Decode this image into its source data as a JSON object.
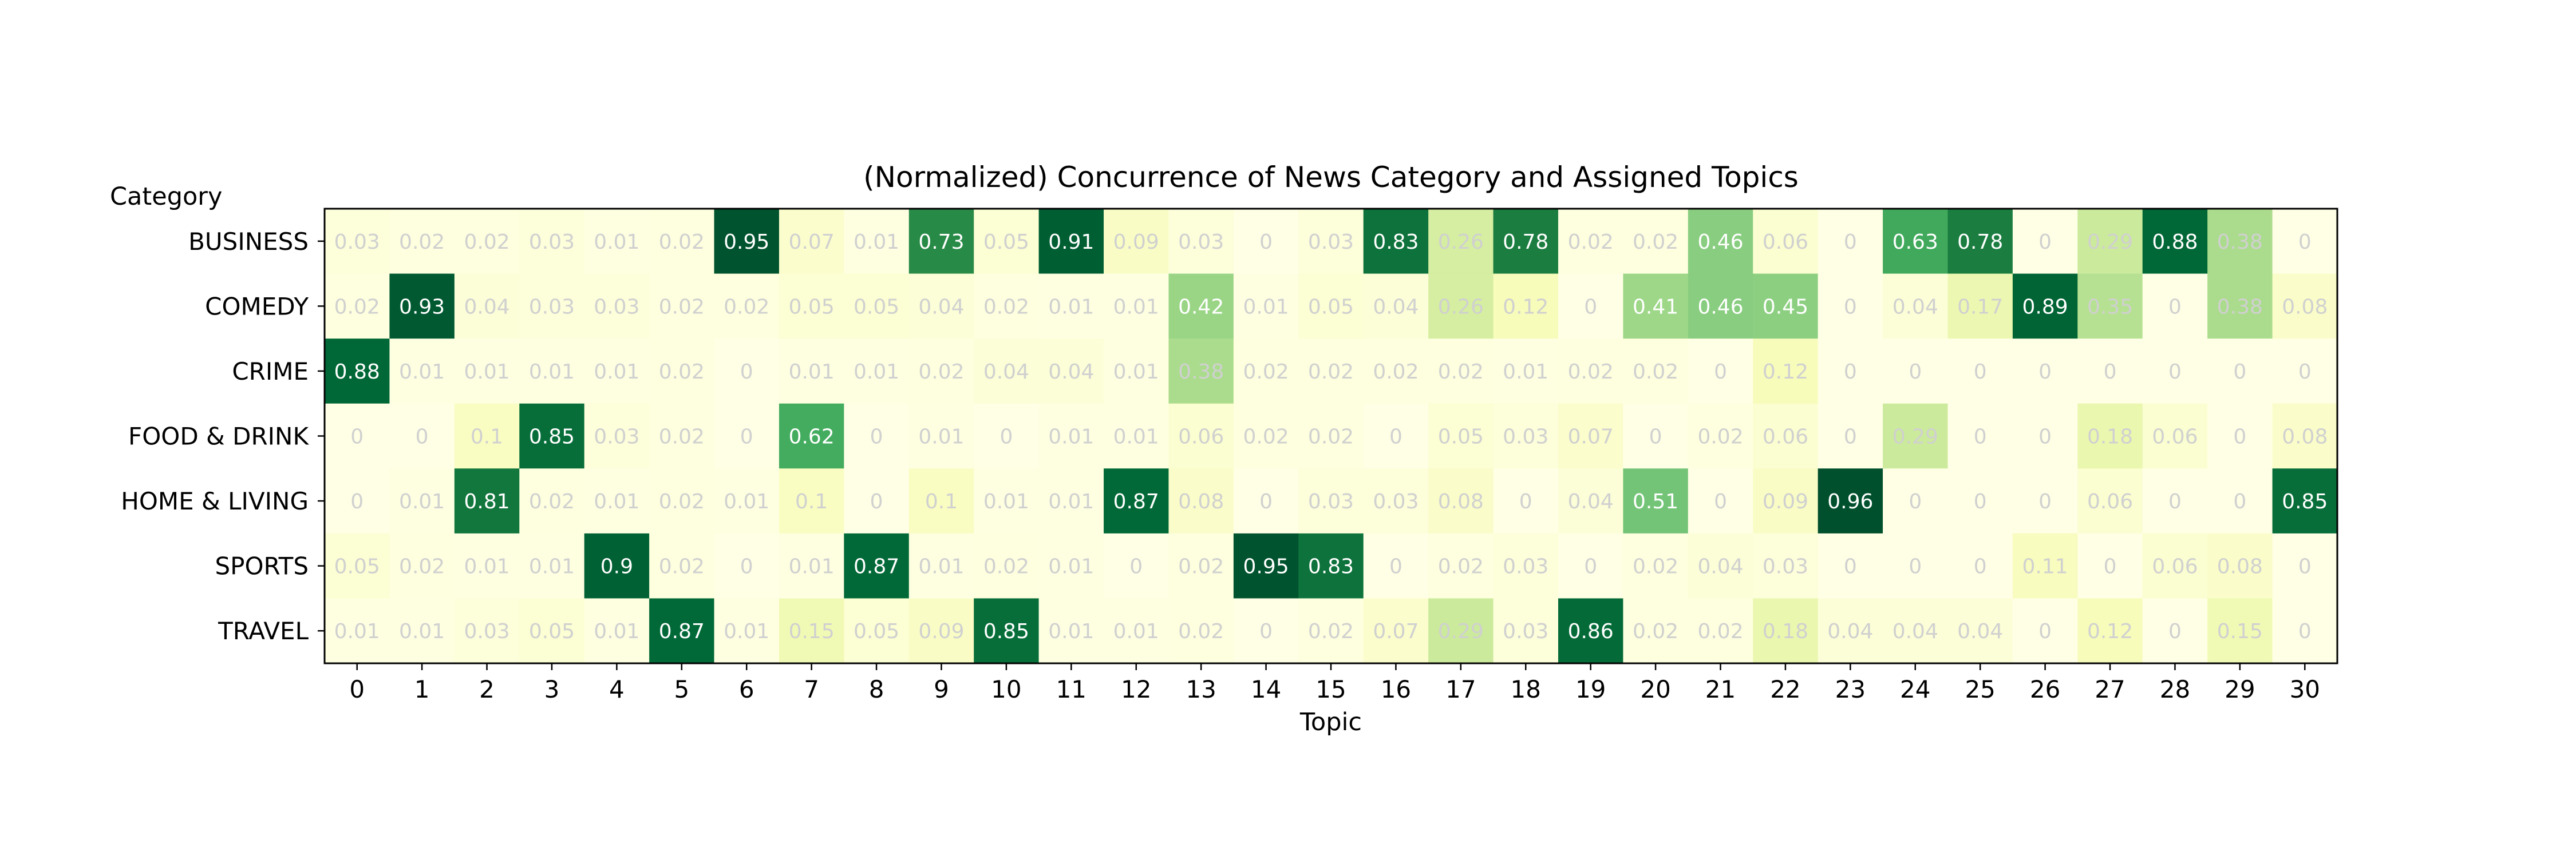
{
  "chart_data": {
    "type": "heatmap",
    "title": "(Normalized) Concurrence of News Category and Assigned Topics",
    "xlabel": "Topic",
    "ylabel": "Category",
    "x": [
      0,
      1,
      2,
      3,
      4,
      5,
      6,
      7,
      8,
      9,
      10,
      11,
      12,
      13,
      14,
      15,
      16,
      17,
      18,
      19,
      20,
      21,
      22,
      23,
      24,
      25,
      26,
      27,
      28,
      29,
      30
    ],
    "y": [
      "BUSINESS",
      "COMEDY",
      "CRIME",
      "FOOD & DRINK",
      "HOME & LIVING",
      "SPORTS",
      "TRAVEL"
    ],
    "z": [
      [
        0.03,
        0.02,
        0.02,
        0.03,
        0.01,
        0.02,
        0.95,
        0.07,
        0.01,
        0.73,
        0.05,
        0.91,
        0.09,
        0.03,
        0.0,
        0.03,
        0.83,
        0.26,
        0.78,
        0.02,
        0.02,
        0.46,
        0.06,
        0.0,
        0.63,
        0.78,
        0.0,
        0.29,
        0.88,
        0.38,
        0.0
      ],
      [
        0.02,
        0.93,
        0.04,
        0.03,
        0.03,
        0.02,
        0.02,
        0.05,
        0.05,
        0.04,
        0.02,
        0.01,
        0.01,
        0.42,
        0.01,
        0.05,
        0.04,
        0.26,
        0.12,
        0.0,
        0.41,
        0.46,
        0.45,
        0.0,
        0.04,
        0.17,
        0.89,
        0.35,
        0.0,
        0.38,
        0.08
      ],
      [
        0.88,
        0.01,
        0.01,
        0.01,
        0.01,
        0.02,
        0.0,
        0.01,
        0.01,
        0.02,
        0.04,
        0.04,
        0.01,
        0.38,
        0.02,
        0.02,
        0.02,
        0.02,
        0.01,
        0.02,
        0.02,
        0.0,
        0.12,
        0.0,
        0.0,
        0.0,
        0.0,
        0.0,
        0.0,
        0.0,
        0.0
      ],
      [
        0.0,
        0.0,
        0.1,
        0.85,
        0.03,
        0.02,
        0.0,
        0.62,
        0.0,
        0.01,
        0.0,
        0.01,
        0.01,
        0.06,
        0.02,
        0.02,
        0.0,
        0.05,
        0.03,
        0.07,
        0.0,
        0.02,
        0.06,
        0.0,
        0.29,
        0.0,
        0.0,
        0.18,
        0.06,
        0.0,
        0.08
      ],
      [
        0.0,
        0.01,
        0.81,
        0.02,
        0.01,
        0.02,
        0.01,
        0.1,
        0.0,
        0.1,
        0.01,
        0.01,
        0.87,
        0.08,
        0.0,
        0.03,
        0.03,
        0.08,
        0.0,
        0.04,
        0.51,
        0.0,
        0.09,
        0.96,
        0.0,
        0.0,
        0.0,
        0.06,
        0.0,
        0.0,
        0.85
      ],
      [
        0.05,
        0.02,
        0.01,
        0.01,
        0.9,
        0.02,
        0.0,
        0.01,
        0.87,
        0.01,
        0.02,
        0.01,
        0.0,
        0.02,
        0.95,
        0.83,
        0.0,
        0.02,
        0.03,
        0.0,
        0.02,
        0.04,
        0.03,
        0.0,
        0.0,
        0.0,
        0.11,
        0.0,
        0.06,
        0.08,
        0.0
      ],
      [
        0.01,
        0.01,
        0.03,
        0.05,
        0.01,
        0.87,
        0.01,
        0.15,
        0.05,
        0.09,
        0.85,
        0.01,
        0.01,
        0.02,
        0.0,
        0.02,
        0.07,
        0.29,
        0.03,
        0.86,
        0.02,
        0.02,
        0.18,
        0.04,
        0.04,
        0.04,
        0.0,
        0.12,
        0.0,
        0.15,
        0.0
      ]
    ],
    "colormap": "YlGn",
    "grid": false,
    "legend": "none"
  }
}
